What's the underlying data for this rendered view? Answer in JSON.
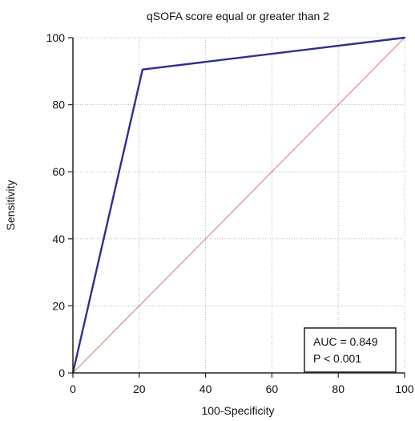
{
  "chart_data": {
    "type": "line",
    "title": "qSOFA score equal or greater than 2",
    "xlabel": "100-Specificity",
    "ylabel": "Sensitivity",
    "xlim": [
      0,
      100
    ],
    "ylim": [
      0,
      100
    ],
    "xticks": [
      "0",
      "20",
      "40",
      "60",
      "80",
      "100"
    ],
    "yticks": [
      "0",
      "20",
      "40",
      "60",
      "80",
      "100"
    ],
    "grid": true,
    "series": [
      {
        "x": [
          0,
          21,
          100
        ],
        "y": [
          0,
          90.5,
          100
        ],
        "color": "#2f2f8f"
      },
      {
        "x": [
          0,
          100
        ],
        "y": [
          0,
          100
        ],
        "color": "#d98b8b",
        "style": "reference-diagonal"
      }
    ],
    "annotation": {
      "lines": [
        "AUC = 0.849",
        "P < 0.001"
      ],
      "placement": "bottom-right"
    }
  }
}
